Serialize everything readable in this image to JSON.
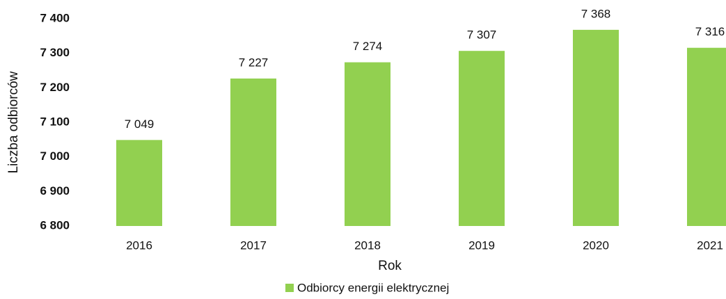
{
  "chart_data": {
    "type": "bar",
    "categories": [
      "2016",
      "2017",
      "2018",
      "2019",
      "2020",
      "2021"
    ],
    "series": [
      {
        "name": "Odbiorcy energii elektrycznej",
        "color": "#92d050",
        "values": [
          7049,
          7227,
          7274,
          7307,
          7368,
          7316
        ],
        "value_labels": [
          "7 049",
          "7 227",
          "7 274",
          "7 307",
          "7 368",
          "7 316"
        ]
      }
    ],
    "xlabel": "Rok",
    "ylabel": "Liczba odbiorców",
    "ylim": [
      6800,
      7400
    ],
    "yticks": [
      {
        "value": 6800,
        "label": "6 800"
      },
      {
        "value": 6900,
        "label": "6 900"
      },
      {
        "value": 7000,
        "label": "7 000"
      },
      {
        "value": 7100,
        "label": "7 100"
      },
      {
        "value": 7200,
        "label": "7 200"
      },
      {
        "value": 7300,
        "label": "7 300"
      },
      {
        "value": 7400,
        "label": "7 400"
      }
    ],
    "grid": false,
    "legend": "bottom"
  }
}
